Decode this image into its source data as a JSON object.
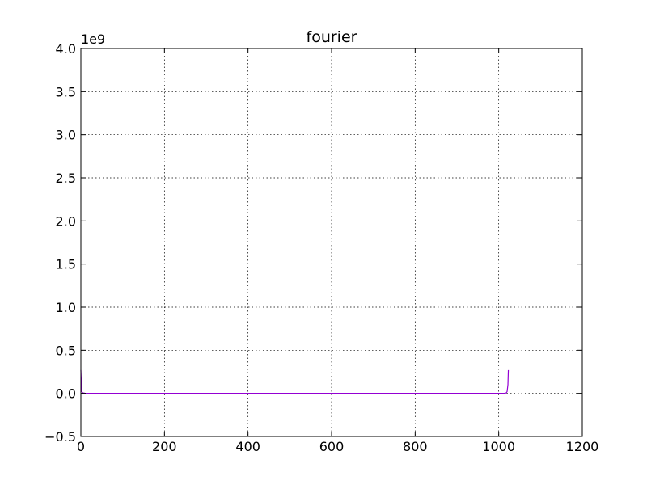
{
  "chart_data": {
    "type": "line",
    "title": "fourier",
    "xlabel": "",
    "ylabel": "",
    "y_offset_label": "1e9",
    "xlim": [
      0,
      1200
    ],
    "ylim": [
      -0.5,
      4.0
    ],
    "y_scale_multiplier": 1000000000,
    "x_ticks": [
      "0",
      "200",
      "400",
      "600",
      "800",
      "1000",
      "1200"
    ],
    "y_ticks": [
      "−0.5",
      "0.0",
      "0.5",
      "1.0",
      "1.5",
      "2.0",
      "2.5",
      "3.0",
      "3.5",
      "4.0"
    ],
    "grid": true,
    "legend": "none",
    "series": [
      {
        "color": "#9400d3",
        "x": [
          0,
          2,
          5,
          10,
          20,
          50,
          100,
          200,
          300,
          400,
          500,
          600,
          700,
          800,
          900,
          1000,
          1013,
          1018,
          1020,
          1022,
          1023
        ],
        "y": [
          0.27,
          0.02,
          0.005,
          0.002,
          0.001,
          0.0005,
          0.0003,
          0.0002,
          0.0001,
          0.0001,
          0.0001,
          0.0001,
          0.0001,
          0.0001,
          0.0001,
          0.0003,
          0.001,
          0.005,
          0.02,
          0.1,
          0.27
        ]
      }
    ]
  }
}
